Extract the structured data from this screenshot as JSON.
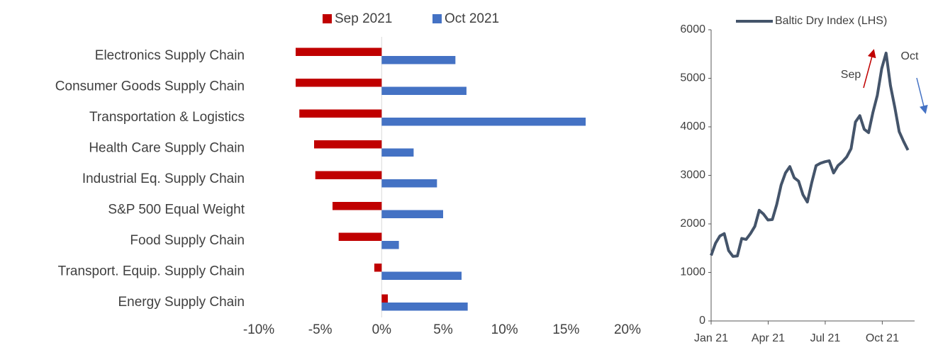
{
  "chart_data": [
    {
      "type": "bar",
      "orientation": "horizontal",
      "categories": [
        "Electronics  Supply Chain",
        "Consumer Goods Supply Chain",
        "Transportation & Logistics",
        "Health Care Supply Chain",
        "Industrial Eq. Supply Chain",
        "S&P 500 Equal Weight",
        "Food Supply Chain",
        "Transport. Equip. Supply Chain",
        "Energy Supply Chain"
      ],
      "series": [
        {
          "name": "Sep 2021",
          "color": "#c00000",
          "values": [
            -7.0,
            -7.0,
            -6.7,
            -5.5,
            -5.4,
            -4.0,
            -3.5,
            -0.6,
            0.5
          ]
        },
        {
          "name": "Oct 2021",
          "color": "#4472c4",
          "values": [
            6.0,
            6.9,
            16.6,
            2.6,
            4.5,
            5.0,
            1.4,
            6.5,
            7.0
          ]
        }
      ],
      "xlim": [
        -10,
        20
      ],
      "xticks": [
        {
          "value": -10,
          "label": "-10%"
        },
        {
          "value": -5,
          "label": "-5%"
        },
        {
          "value": 0,
          "label": "0%"
        },
        {
          "value": 5,
          "label": "5%"
        },
        {
          "value": 10,
          "label": "10%"
        },
        {
          "value": 15,
          "label": "15%"
        },
        {
          "value": 20,
          "label": "20%"
        }
      ],
      "legend": "top"
    },
    {
      "type": "line",
      "x": [
        0,
        0.23,
        0.46,
        0.69,
        0.92,
        1.15,
        1.38,
        1.61,
        1.84,
        2.07,
        2.3,
        2.53,
        2.76,
        2.99,
        3.22,
        3.45,
        3.68,
        3.91,
        4.14,
        4.37,
        4.6,
        4.83,
        5.06,
        5.29,
        5.52,
        5.75,
        5.98,
        6.21,
        6.44,
        6.67,
        6.9,
        7.13,
        7.36,
        7.59,
        7.82,
        8.05,
        8.28,
        8.51,
        8.74,
        8.97,
        9.2,
        9.43,
        9.66,
        9.89,
        10.12,
        10.35
      ],
      "series": [
        {
          "name": "Baltic Dry Index (LHS)",
          "color": "#44546a",
          "values": [
            1350,
            1600,
            1750,
            1800,
            1450,
            1330,
            1340,
            1700,
            1680,
            1800,
            1950,
            2280,
            2200,
            2080,
            2090,
            2400,
            2800,
            3050,
            3180,
            2950,
            2880,
            2600,
            2450,
            2850,
            3200,
            3250,
            3280,
            3300,
            3050,
            3200,
            3280,
            3380,
            3550,
            4100,
            4230,
            3950,
            3880,
            4300,
            4650,
            5200,
            5520,
            4850,
            4400,
            3900,
            3700,
            3520
          ]
        }
      ],
      "xlim": [
        0,
        10.7
      ],
      "xticks": [
        {
          "value": 0,
          "label": "Jan 21"
        },
        {
          "value": 3,
          "label": "Apr 21"
        },
        {
          "value": 6,
          "label": "Jul 21"
        },
        {
          "value": 9,
          "label": "Oct 21"
        }
      ],
      "ylim": [
        0,
        6000
      ],
      "yticks": [
        0,
        1000,
        2000,
        3000,
        4000,
        5000,
        6000
      ],
      "annotations": [
        "Sep",
        "Oct"
      ],
      "legend": "top"
    }
  ]
}
